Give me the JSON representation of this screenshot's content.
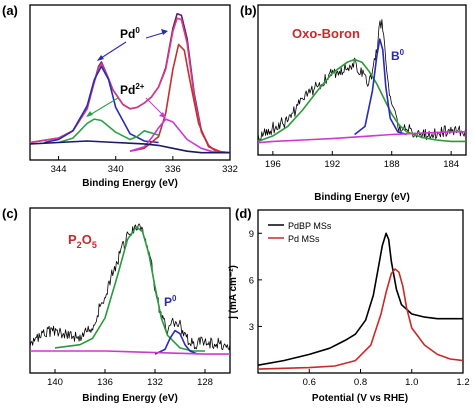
{
  "chart_data": [
    {
      "id": "a",
      "panel_label": "(a)",
      "type": "line",
      "xlabel": "Binding Energy (eV)",
      "xlim": [
        332,
        346
      ],
      "x_reversed": true,
      "xticks": [
        344,
        340,
        336,
        332
      ],
      "ylabel": "",
      "yticks": [],
      "annotations": [
        {
          "text": "Pd",
          "sup": "0",
          "color": "#000000"
        },
        {
          "text": "Pd",
          "sup": "2+",
          "color": "#000000"
        }
      ],
      "series": [
        {
          "role": "raw",
          "color": "#6a1a6a",
          "x": [
            346,
            344,
            343,
            342,
            341.6,
            341.2,
            341,
            340.6,
            340.2,
            339.5,
            339,
            338.5,
            338,
            337.5,
            337,
            336.5,
            336,
            335.7,
            335.4,
            335,
            334.5,
            334,
            333.5,
            333,
            332
          ],
          "y": [
            0.12,
            0.15,
            0.2,
            0.35,
            0.5,
            0.64,
            0.67,
            0.58,
            0.48,
            0.38,
            0.35,
            0.36,
            0.39,
            0.43,
            0.5,
            0.63,
            0.9,
            1.0,
            0.99,
            0.83,
            0.45,
            0.2,
            0.1,
            0.06,
            0.05
          ]
        },
        {
          "role": "fit-envelope",
          "color": "#d23a8a",
          "x": [
            346,
            344,
            343,
            342,
            341.6,
            341.2,
            341,
            340.6,
            340.2,
            339.5,
            339,
            338.5,
            338,
            337.5,
            337,
            336.5,
            336,
            335.7,
            335.4,
            335,
            334.5,
            334,
            333.5,
            333,
            332
          ],
          "y": [
            0.12,
            0.15,
            0.2,
            0.35,
            0.5,
            0.63,
            0.66,
            0.58,
            0.48,
            0.38,
            0.35,
            0.36,
            0.39,
            0.43,
            0.5,
            0.62,
            0.88,
            0.97,
            0.96,
            0.8,
            0.43,
            0.19,
            0.1,
            0.06,
            0.05
          ]
        },
        {
          "role": "Pd0-3d3/2",
          "color": "#2a2ab8",
          "x": [
            345,
            344,
            343,
            342,
            341.5,
            341,
            340.5,
            340,
            339,
            338,
            337
          ],
          "y": [
            0.12,
            0.14,
            0.2,
            0.37,
            0.55,
            0.64,
            0.55,
            0.36,
            0.18,
            0.13,
            0.12
          ]
        },
        {
          "role": "Pd0-3d5/2",
          "color": "#c23030",
          "x": [
            339,
            338,
            337,
            336.5,
            336,
            335.6,
            335.2,
            334.8,
            334.2,
            333.5,
            332.5
          ],
          "y": [
            0.06,
            0.08,
            0.16,
            0.32,
            0.62,
            0.79,
            0.75,
            0.54,
            0.25,
            0.09,
            0.05
          ]
        },
        {
          "role": "Pd2+",
          "color": "#2aa24a",
          "x": [
            344,
            343,
            342.5,
            342,
            341.5,
            341,
            340,
            339,
            338.5,
            338,
            337
          ],
          "y": [
            0.12,
            0.15,
            0.2,
            0.25,
            0.28,
            0.27,
            0.19,
            0.14,
            0.16,
            0.2,
            0.17
          ]
        },
        {
          "role": "Pd2+-b",
          "color": "#c83ad8",
          "x": [
            339,
            338,
            337.5,
            337,
            336.5,
            336,
            335.5,
            335,
            334,
            333
          ],
          "y": [
            0.06,
            0.09,
            0.15,
            0.22,
            0.28,
            0.26,
            0.2,
            0.14,
            0.08,
            0.05
          ]
        },
        {
          "role": "background",
          "color": "#1a1a60",
          "x": [
            346,
            344,
            342,
            340,
            338,
            337,
            336,
            335,
            334,
            333,
            332
          ],
          "y": [
            0.11,
            0.12,
            0.13,
            0.12,
            0.11,
            0.1,
            0.08,
            0.06,
            0.05,
            0.05,
            0.05
          ]
        }
      ]
    },
    {
      "id": "b",
      "panel_label": "(b)",
      "type": "line",
      "xlabel": "Binding Energy (eV)",
      "xlim": [
        183,
        197
      ],
      "x_reversed": true,
      "xticks": [
        196,
        192,
        188,
        184
      ],
      "ylabel": "",
      "yticks": [],
      "annotations": [
        {
          "text": "Oxo-Boron",
          "sup": "",
          "color": "#c82a2a"
        },
        {
          "text": "B",
          "sup": "0",
          "color": "#2a2aa8"
        }
      ],
      "series": [
        {
          "role": "raw",
          "color": "#000000",
          "x": [
            197,
            196,
            195,
            194,
            193,
            192,
            191,
            190.5,
            190,
            189.5,
            189,
            188.8,
            188.6,
            188.3,
            188,
            187.5,
            187,
            186,
            185,
            184,
            183
          ],
          "y": [
            0.07,
            0.15,
            0.2,
            0.35,
            0.46,
            0.55,
            0.6,
            0.63,
            0.55,
            0.48,
            0.7,
            0.95,
            0.88,
            0.55,
            0.3,
            0.15,
            0.14,
            0.1,
            0.1,
            0.14,
            0.12
          ]
        },
        {
          "role": "Oxo-Boron",
          "color": "#2a9a3a",
          "x": [
            197,
            196,
            195,
            194,
            193,
            192,
            191,
            190.5,
            190,
            189.5,
            189,
            188.5,
            188,
            187.5,
            187,
            186,
            185,
            184,
            183
          ],
          "y": [
            0.05,
            0.09,
            0.16,
            0.28,
            0.42,
            0.55,
            0.63,
            0.65,
            0.63,
            0.56,
            0.47,
            0.36,
            0.25,
            0.17,
            0.12,
            0.08,
            0.06,
            0.05,
            0.05
          ]
        },
        {
          "role": "B0",
          "color": "#2a2ab8",
          "x": [
            190.5,
            189.8,
            189.3,
            189,
            188.8,
            188.6,
            188.4,
            188.1,
            187.6,
            187
          ],
          "y": [
            0.1,
            0.16,
            0.42,
            0.68,
            0.8,
            0.72,
            0.45,
            0.22,
            0.12,
            0.1
          ]
        },
        {
          "role": "background",
          "color": "#cc3acc",
          "x": [
            197,
            196,
            194,
            192,
            190,
            188,
            186,
            184,
            183
          ],
          "y": [
            0.04,
            0.05,
            0.06,
            0.07,
            0.085,
            0.1,
            0.11,
            0.12,
            0.12
          ]
        }
      ]
    },
    {
      "id": "c",
      "panel_label": "(c)",
      "type": "line",
      "xlabel": "Binding Energy (eV)",
      "xlim": [
        126,
        142
      ],
      "x_reversed": true,
      "xticks": [
        140,
        136,
        132,
        128
      ],
      "ylabel": "",
      "yticks": [],
      "annotations": [
        {
          "text": "P",
          "sub": "2",
          "text2": "O",
          "sub2": "5",
          "color": "#c82a2a"
        },
        {
          "text": "P",
          "sup": "0",
          "color": "#2a2aa8"
        }
      ],
      "series": [
        {
          "role": "raw",
          "color": "#000000",
          "x": [
            142,
            140,
            138,
            137,
            136,
            135,
            134,
            133.5,
            133,
            132.5,
            132,
            131.5,
            131,
            130.5,
            130,
            129.5,
            129,
            128,
            126
          ],
          "y": [
            0.2,
            0.28,
            0.22,
            0.3,
            0.5,
            0.72,
            0.9,
            0.95,
            0.92,
            0.78,
            0.55,
            0.35,
            0.28,
            0.33,
            0.3,
            0.22,
            0.18,
            0.2,
            0.18
          ]
        },
        {
          "role": "P2O5",
          "color": "#2a9a3a",
          "x": [
            140,
            138,
            137,
            136,
            135,
            134.2,
            133.5,
            133,
            132.5,
            132,
            131.5,
            131,
            130,
            129,
            128
          ],
          "y": [
            0.16,
            0.18,
            0.22,
            0.35,
            0.62,
            0.85,
            0.93,
            0.9,
            0.76,
            0.55,
            0.35,
            0.24,
            0.16,
            0.14,
            0.14
          ]
        },
        {
          "role": "P0",
          "color": "#2a2ab8",
          "x": [
            132,
            131.2,
            130.8,
            130.4,
            130,
            129.6,
            129.2,
            128.6
          ],
          "y": [
            0.12,
            0.15,
            0.22,
            0.27,
            0.25,
            0.18,
            0.14,
            0.12
          ]
        },
        {
          "role": "background",
          "color": "#cc3acc",
          "x": [
            142,
            140,
            136,
            132,
            128,
            126
          ],
          "y": [
            0.14,
            0.14,
            0.14,
            0.13,
            0.12,
            0.12
          ]
        }
      ]
    },
    {
      "id": "d",
      "panel_label": "(d)",
      "type": "line",
      "xlabel": "Potential (V vs RHE)",
      "xlim": [
        0.4,
        1.2
      ],
      "x_reversed": false,
      "xticks": [
        0.6,
        0.8,
        1.0,
        1.2
      ],
      "ylabel": "j (mA cm⁻²)",
      "ylim": [
        0,
        10.5
      ],
      "yticks": [
        3,
        6,
        9
      ],
      "legend": "top-left",
      "series": [
        {
          "name": "PdBP MSs",
          "color": "#000000",
          "x": [
            0.4,
            0.5,
            0.6,
            0.68,
            0.74,
            0.78,
            0.82,
            0.85,
            0.87,
            0.885,
            0.9,
            0.91,
            0.92,
            0.94,
            0.96,
            1.0,
            1.05,
            1.1,
            1.15,
            1.2
          ],
          "y": [
            0.5,
            0.8,
            1.2,
            1.6,
            2.1,
            2.5,
            3.4,
            5.0,
            6.8,
            8.2,
            9.0,
            8.6,
            7.2,
            5.4,
            4.4,
            3.8,
            3.6,
            3.5,
            3.5,
            3.5
          ]
        },
        {
          "name": "Pd MSs",
          "color": "#c82a2a",
          "x": [
            0.4,
            0.5,
            0.6,
            0.7,
            0.78,
            0.84,
            0.88,
            0.9,
            0.92,
            0.935,
            0.95,
            0.965,
            0.98,
            1.0,
            1.05,
            1.1,
            1.15,
            1.2
          ],
          "y": [
            0.25,
            0.3,
            0.35,
            0.45,
            0.8,
            1.8,
            3.8,
            5.2,
            6.4,
            6.7,
            6.5,
            5.6,
            4.2,
            2.9,
            1.8,
            1.2,
            0.9,
            0.8
          ]
        }
      ]
    }
  ]
}
